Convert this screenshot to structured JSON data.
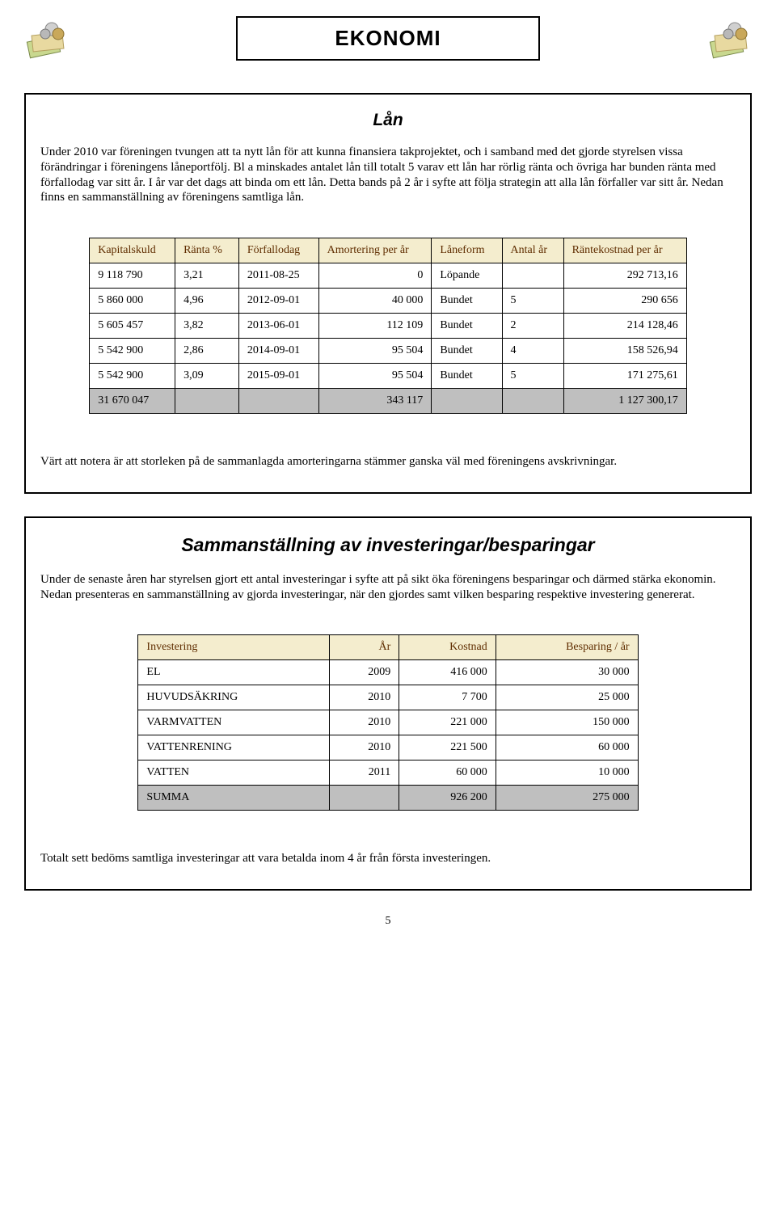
{
  "title": "EKONOMI",
  "section1": {
    "heading": "Lån",
    "paragraph": "Under 2010 var föreningen tvungen att ta nytt lån för att kunna finansiera takprojektet, och i samband med det gjorde styrelsen vissa förändringar i föreningens låneportfölj. Bl a minskades antalet lån till totalt 5 varav ett lån har rörlig ränta och övriga har bunden ränta med förfallodag var sitt år. I år var det dags att binda om ett lån. Detta bands på 2 år i syfte att följa strategin att alla lån förfaller var sitt år. Nedan finns en sammanställning av föreningens samtliga lån.",
    "table": {
      "columns": [
        "Kapitalskuld",
        "Ränta %",
        "Förfallodag",
        "Amortering per år",
        "Låneform",
        "Antal år",
        "Räntekostnad per år"
      ],
      "rows": [
        [
          "9 118 790",
          "3,21",
          "2011-08-25",
          "0",
          "Löpande",
          "",
          "292 713,16"
        ],
        [
          "5 860 000",
          "4,96",
          "2012-09-01",
          "40 000",
          "Bundet",
          "5",
          "290 656"
        ],
        [
          "5 605 457",
          "3,82",
          "2013-06-01",
          "112 109",
          "Bundet",
          "2",
          "214 128,46"
        ],
        [
          "5 542 900",
          "2,86",
          "2014-09-01",
          "95 504",
          "Bundet",
          "4",
          "158 526,94"
        ],
        [
          "5 542 900",
          "3,09",
          "2015-09-01",
          "95 504",
          "Bundet",
          "5",
          "171 275,61"
        ]
      ],
      "total": [
        "31 670 047",
        "",
        "",
        "343 117",
        "",
        "",
        "1 127 300,17"
      ],
      "header_bg": "#f4edce",
      "header_color": "#5f2d00",
      "total_bg": "#bfbfbf"
    },
    "footnote": "Värt att notera är att storleken på de sammanlagda amorteringarna stämmer ganska väl med föreningens avskrivningar."
  },
  "section2": {
    "heading": "Sammanställning av investeringar/besparingar",
    "paragraph": "Under de senaste åren har styrelsen gjort ett antal investeringar i syfte att på sikt öka föreningens besparingar och därmed stärka ekonomin. Nedan presenteras en sammanställning av gjorda investeringar, när den gjordes samt vilken besparing respektive investering genererat.",
    "table": {
      "columns": [
        "Investering",
        "År",
        "Kostnad",
        "Besparing / år"
      ],
      "rows": [
        [
          "EL",
          "2009",
          "416 000",
          "30 000"
        ],
        [
          "HUVUDSÄKRING",
          "2010",
          "7 700",
          "25 000"
        ],
        [
          "VARMVATTEN",
          "2010",
          "221 000",
          "150 000"
        ],
        [
          "VATTENRENING",
          "2010",
          "221 500",
          "60 000"
        ],
        [
          "VATTEN",
          "2011",
          "60 000",
          "10 000"
        ]
      ],
      "total": [
        "SUMMA",
        "",
        "926 200",
        "275 000"
      ],
      "header_bg": "#f4edce",
      "header_color": "#5f2d00",
      "total_bg": "#bfbfbf"
    },
    "footnote": "Totalt sett bedöms samtliga investeringar att vara betalda inom 4 år från första investeringen."
  },
  "page_number": "5"
}
